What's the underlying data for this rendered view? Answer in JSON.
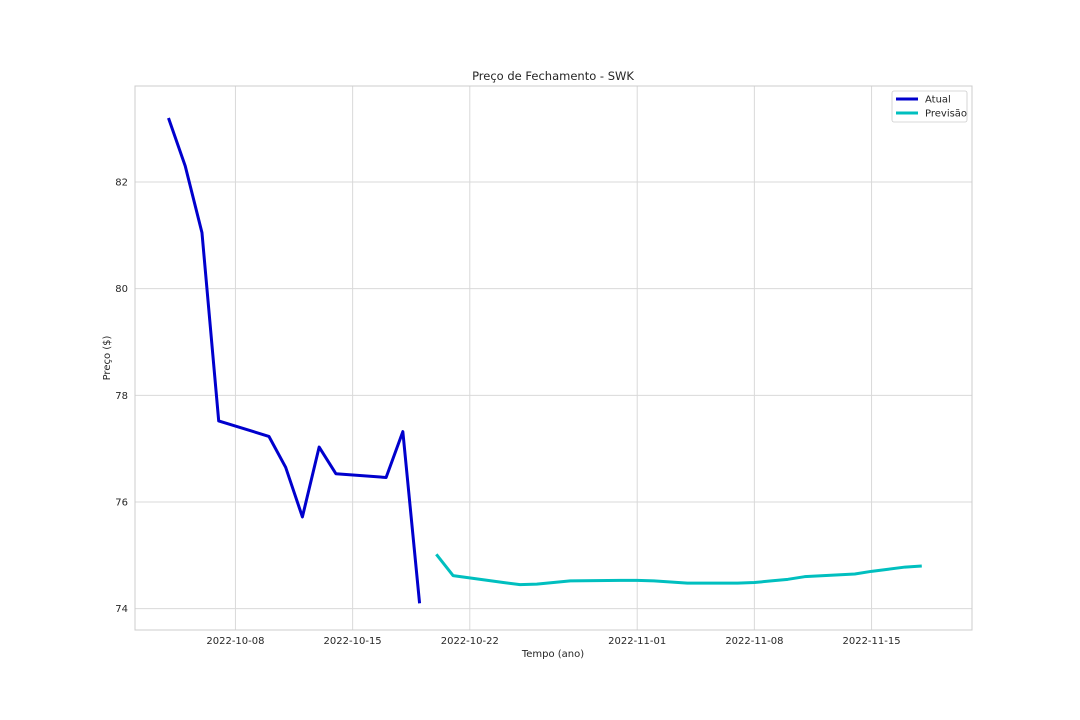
{
  "chart_data": {
    "type": "line",
    "title": "Preço de Fechamento - SWK",
    "xlabel": "Tempo (ano)",
    "ylabel": "Preço ($)",
    "x_ticks": [
      "2022-10-08",
      "2022-10-15",
      "2022-10-22",
      "2022-11-01",
      "2022-11-08",
      "2022-11-15"
    ],
    "y_ticks": [
      74,
      76,
      78,
      80,
      82
    ],
    "xlim": [
      "2022-10-02",
      "2022-11-21"
    ],
    "ylim": [
      73.6,
      83.8
    ],
    "grid": true,
    "legend_position": "top-right",
    "series": [
      {
        "name": "Atual",
        "color": "#0000cd",
        "x": [
          "2022-10-04",
          "2022-10-05",
          "2022-10-06",
          "2022-10-07",
          "2022-10-10",
          "2022-10-11",
          "2022-10-12",
          "2022-10-13",
          "2022-10-14",
          "2022-10-17",
          "2022-10-18",
          "2022-10-19"
        ],
        "values": [
          83.2,
          82.3,
          81.05,
          77.52,
          77.23,
          76.65,
          75.72,
          77.03,
          76.53,
          76.46,
          77.32,
          74.1
        ]
      },
      {
        "name": "Previsão",
        "color": "#00bfbf",
        "x": [
          "2022-10-20",
          "2022-10-21",
          "2022-10-24",
          "2022-10-25",
          "2022-10-26",
          "2022-10-27",
          "2022-10-28",
          "2022-10-31",
          "2022-11-01",
          "2022-11-02",
          "2022-11-03",
          "2022-11-04",
          "2022-11-07",
          "2022-11-08",
          "2022-11-09",
          "2022-11-10",
          "2022-11-11",
          "2022-11-14",
          "2022-11-15",
          "2022-11-16",
          "2022-11-17",
          "2022-11-18"
        ],
        "values": [
          75.02,
          74.62,
          74.49,
          74.45,
          74.46,
          74.49,
          74.52,
          74.53,
          74.53,
          74.52,
          74.5,
          74.48,
          74.48,
          74.49,
          74.52,
          74.55,
          74.6,
          74.65,
          74.7,
          74.74,
          74.78,
          74.8
        ]
      }
    ]
  }
}
